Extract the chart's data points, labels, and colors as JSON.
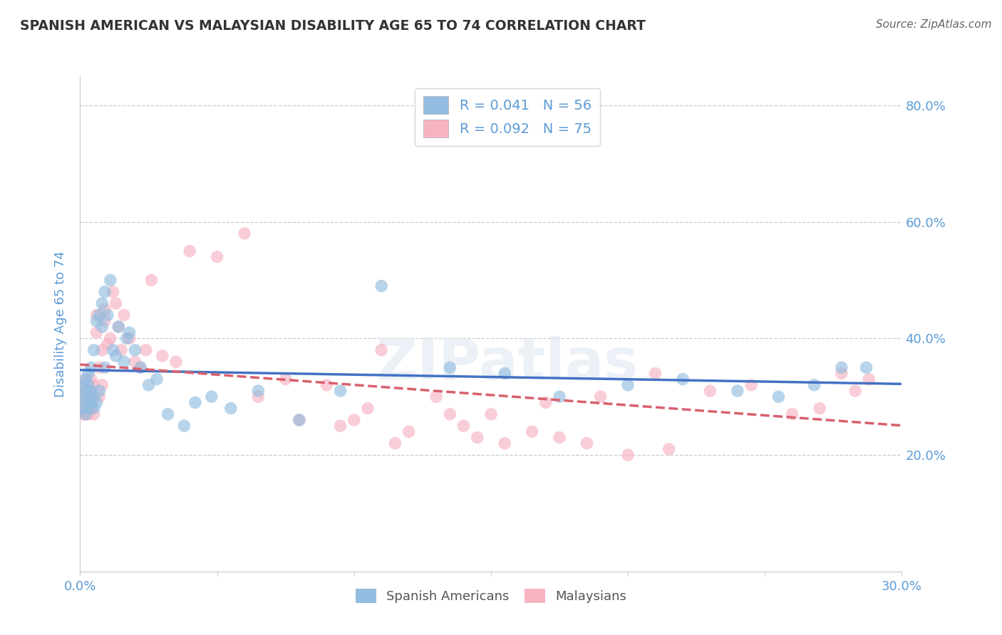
{
  "title": "SPANISH AMERICAN VS MALAYSIAN DISABILITY AGE 65 TO 74 CORRELATION CHART",
  "source": "Source: ZipAtlas.com",
  "ylabel_label": "Disability Age 65 to 74",
  "x_min": 0.0,
  "x_max": 0.3,
  "y_min": 0.0,
  "y_max": 0.85,
  "grid_color": "#cccccc",
  "background_color": "#ffffff",
  "legend_R1": "R = 0.041",
  "legend_N1": "N = 56",
  "legend_R2": "R = 0.092",
  "legend_N2": "N = 75",
  "color_blue": "#92bde0",
  "color_pink": "#f7b3c2",
  "color_blue_line": "#4472c4",
  "color_pink_line": "#d9606e",
  "title_color": "#333333",
  "axis_label_color": "#5b9bd5",
  "tick_label_color": "#5b9bd5",
  "source_color": "#666666",
  "spanish_x": [
    0.001,
    0.001,
    0.001,
    0.002,
    0.002,
    0.002,
    0.002,
    0.003,
    0.003,
    0.003,
    0.003,
    0.004,
    0.004,
    0.004,
    0.005,
    0.005,
    0.005,
    0.006,
    0.006,
    0.007,
    0.007,
    0.008,
    0.008,
    0.009,
    0.009,
    0.01,
    0.011,
    0.012,
    0.013,
    0.014,
    0.016,
    0.017,
    0.018,
    0.02,
    0.022,
    0.025,
    0.028,
    0.032,
    0.038,
    0.042,
    0.048,
    0.055,
    0.065,
    0.08,
    0.095,
    0.11,
    0.135,
    0.155,
    0.175,
    0.2,
    0.22,
    0.24,
    0.255,
    0.268,
    0.278,
    0.287
  ],
  "spanish_y": [
    0.28,
    0.3,
    0.32,
    0.27,
    0.29,
    0.31,
    0.33,
    0.28,
    0.3,
    0.32,
    0.34,
    0.29,
    0.31,
    0.35,
    0.28,
    0.3,
    0.38,
    0.29,
    0.43,
    0.31,
    0.44,
    0.46,
    0.42,
    0.35,
    0.48,
    0.44,
    0.5,
    0.38,
    0.37,
    0.42,
    0.36,
    0.4,
    0.41,
    0.38,
    0.35,
    0.32,
    0.33,
    0.27,
    0.25,
    0.29,
    0.3,
    0.28,
    0.31,
    0.26,
    0.31,
    0.49,
    0.35,
    0.34,
    0.3,
    0.32,
    0.33,
    0.31,
    0.3,
    0.32,
    0.35,
    0.35
  ],
  "malaysian_x": [
    0.001,
    0.001,
    0.001,
    0.001,
    0.002,
    0.002,
    0.002,
    0.002,
    0.003,
    0.003,
    0.003,
    0.003,
    0.004,
    0.004,
    0.004,
    0.004,
    0.005,
    0.005,
    0.005,
    0.006,
    0.006,
    0.007,
    0.007,
    0.008,
    0.008,
    0.009,
    0.009,
    0.01,
    0.011,
    0.012,
    0.013,
    0.014,
    0.015,
    0.016,
    0.018,
    0.02,
    0.022,
    0.024,
    0.026,
    0.03,
    0.035,
    0.04,
    0.05,
    0.06,
    0.075,
    0.09,
    0.11,
    0.13,
    0.15,
    0.17,
    0.19,
    0.21,
    0.23,
    0.245,
    0.26,
    0.27,
    0.278,
    0.283,
    0.288,
    0.14,
    0.155,
    0.1,
    0.12,
    0.065,
    0.08,
    0.105,
    0.115,
    0.095,
    0.175,
    0.185,
    0.2,
    0.215,
    0.165,
    0.145,
    0.135
  ],
  "malaysian_y": [
    0.28,
    0.3,
    0.32,
    0.27,
    0.29,
    0.31,
    0.27,
    0.33,
    0.28,
    0.3,
    0.32,
    0.27,
    0.29,
    0.31,
    0.33,
    0.28,
    0.3,
    0.32,
    0.27,
    0.44,
    0.41,
    0.3,
    0.35,
    0.32,
    0.38,
    0.45,
    0.43,
    0.39,
    0.4,
    0.48,
    0.46,
    0.42,
    0.38,
    0.44,
    0.4,
    0.36,
    0.35,
    0.38,
    0.5,
    0.37,
    0.36,
    0.55,
    0.54,
    0.58,
    0.33,
    0.32,
    0.38,
    0.3,
    0.27,
    0.29,
    0.3,
    0.34,
    0.31,
    0.32,
    0.27,
    0.28,
    0.34,
    0.31,
    0.33,
    0.25,
    0.22,
    0.26,
    0.24,
    0.3,
    0.26,
    0.28,
    0.22,
    0.25,
    0.23,
    0.22,
    0.2,
    0.21,
    0.24,
    0.23,
    0.27
  ]
}
